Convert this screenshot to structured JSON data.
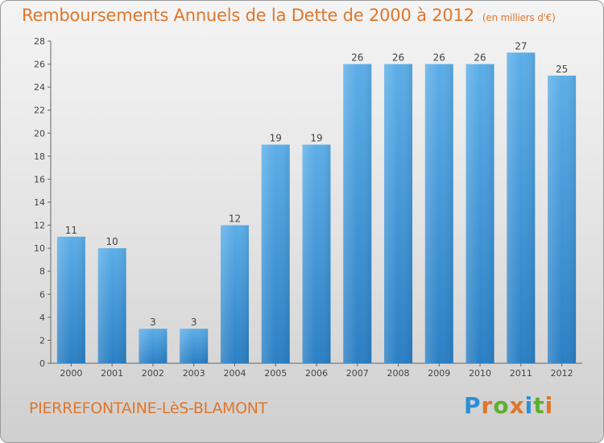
{
  "title": "Remboursements Annuels de la Dette de 2000 à 2012",
  "unit": "(en milliers d'€)",
  "town": "PIERREFONTAINE-LèS-BLAMONT",
  "logo": {
    "letters": [
      "P",
      "r",
      "o",
      "x",
      "i",
      "t",
      "i"
    ],
    "colors": [
      "#2a8fd6",
      "#e0762a",
      "#5cb030",
      "#e0762a",
      "#2a8fd6",
      "#5cb030",
      "#e0762a"
    ]
  },
  "colors": {
    "bar_top": "#5caee8",
    "bar_bottom": "#2a7fc4",
    "accent": "#e0762a",
    "axis": "#555555"
  },
  "chart_data": {
    "type": "bar",
    "title": "Remboursements Annuels de la Dette de 2000 à 2012",
    "xlabel": "",
    "ylabel": "(en milliers d'€)",
    "categories": [
      "2000",
      "2001",
      "2002",
      "2003",
      "2004",
      "2005",
      "2006",
      "2007",
      "2008",
      "2009",
      "2010",
      "2011",
      "2012"
    ],
    "values": [
      11,
      10,
      3,
      3,
      12,
      19,
      19,
      26,
      26,
      26,
      26,
      27,
      25
    ],
    "ylim": [
      0,
      28
    ],
    "yticks": [
      0,
      2,
      4,
      6,
      8,
      10,
      12,
      14,
      16,
      18,
      20,
      22,
      24,
      26,
      28
    ],
    "grid": false,
    "data_labels": true
  }
}
